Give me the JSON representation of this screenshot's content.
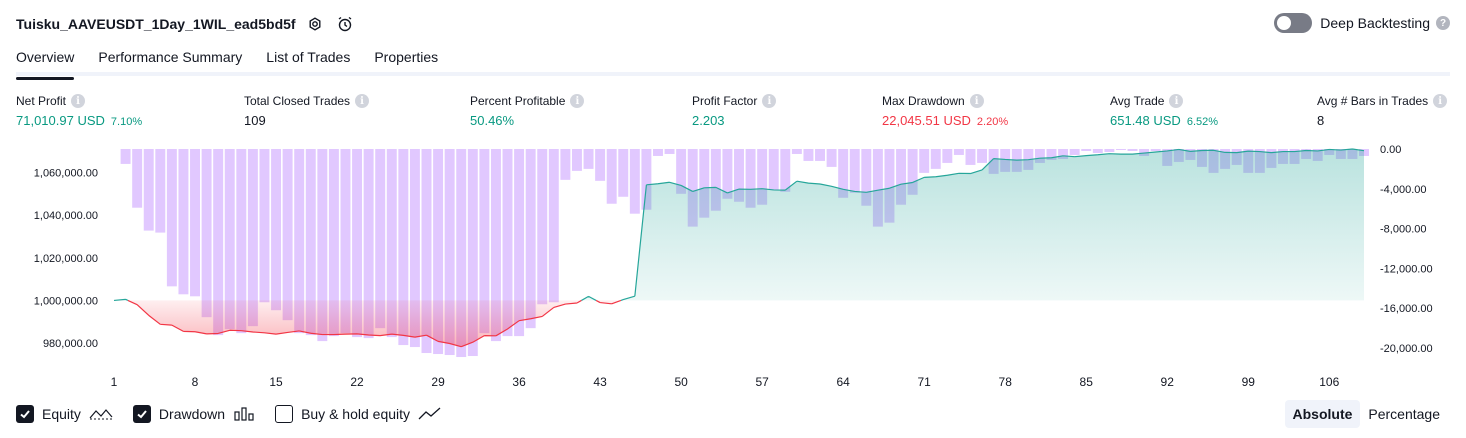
{
  "header": {
    "title": "Tuisku_AAVEUSDT_1Day_1WIL_ead5bd5f",
    "deep_label": "Deep Backtesting",
    "deep_enabled": false
  },
  "tabs": [
    {
      "label": "Overview",
      "active": true
    },
    {
      "label": "Performance Summary",
      "active": false
    },
    {
      "label": "List of Trades",
      "active": false
    },
    {
      "label": "Properties",
      "active": false
    }
  ],
  "metrics": [
    {
      "label": "Net Profit",
      "value": "71,010.97 USD",
      "pct": "7.10%",
      "tone": "pos"
    },
    {
      "label": "Total Closed Trades",
      "value": "109",
      "pct": "",
      "tone": "neu"
    },
    {
      "label": "Percent Profitable",
      "value": "50.46%",
      "pct": "",
      "tone": "pos"
    },
    {
      "label": "Profit Factor",
      "value": "2.203",
      "pct": "",
      "tone": "pos"
    },
    {
      "label": "Max Drawdown",
      "value": "22,045.51 USD",
      "pct": "2.20%",
      "tone": "neg"
    },
    {
      "label": "Avg Trade",
      "value": "651.48 USD",
      "pct": "6.52%",
      "tone": "pos"
    },
    {
      "label": "Avg # Bars in Trades",
      "value": "8",
      "pct": "",
      "tone": "neu"
    }
  ],
  "legend": {
    "equity_label": "Equity",
    "drawdown_label": "Drawdown",
    "buyhold_label": "Buy & hold equity",
    "equity_checked": true,
    "drawdown_checked": true,
    "buyhold_checked": false
  },
  "scale_toggle": {
    "absolute": "Absolute",
    "percentage": "Percentage",
    "active": "absolute"
  },
  "colors": {
    "equity_line_up": "#26a69a",
    "equity_line_down": "#f23645",
    "drawdown_bar": "#d9b8ff",
    "accent": "#131722"
  },
  "chart_data": {
    "type": "area",
    "x_ticks": [
      "1",
      "8",
      "15",
      "22",
      "29",
      "36",
      "43",
      "50",
      "57",
      "64",
      "71",
      "78",
      "85",
      "92",
      "99",
      "106"
    ],
    "left_axis": {
      "ticks": [
        "1,060,000.00",
        "1,040,000.00",
        "1,020,000.00",
        "1,000,000.00",
        "980,000.00"
      ],
      "range": [
        973000,
        1071000
      ],
      "baseline": 1000000
    },
    "right_axis": {
      "ticks": [
        "0.00",
        "-4,000.00",
        "-8,000.00",
        "-12,000.00",
        "-16,000.00",
        "-20,000.00"
      ],
      "range": [
        -21000,
        0
      ]
    },
    "equity": [
      1000000,
      1000500,
      998000,
      993000,
      988800,
      988400,
      985500,
      985300,
      984300,
      984500,
      986000,
      985800,
      985200,
      984800,
      984200,
      985000,
      985700,
      984600,
      984000,
      984000,
      984200,
      984300,
      983800,
      983500,
      984200,
      983600,
      982800,
      983700,
      980800,
      979800,
      978300,
      980400,
      983500,
      983400,
      986600,
      990500,
      991400,
      992500,
      996700,
      998300,
      998800,
      1001900,
      999000,
      998400,
      1000400,
      1002000,
      1054200,
      1054700,
      1055400,
      1053900,
      1051100,
      1052800,
      1053000,
      1050400,
      1052200,
      1052100,
      1052400,
      1051800,
      1051700,
      1055900,
      1055000,
      1054600,
      1053500,
      1052100,
      1051100,
      1050700,
      1051700,
      1052600,
      1054500,
      1055300,
      1057700,
      1058000,
      1058700,
      1059600,
      1059500,
      1061200,
      1066500,
      1066100,
      1065800,
      1066000,
      1066700,
      1066900,
      1067800,
      1067400,
      1067900,
      1068300,
      1068800,
      1068600,
      1068600,
      1069100,
      1069600,
      1070100,
      1070800,
      1069900,
      1070300,
      1070400,
      1069400,
      1069300,
      1070000,
      1069800,
      1069300,
      1069800,
      1069800,
      1070300,
      1070100,
      1070800,
      1070500,
      1071000,
      1070200
    ],
    "drawdown": [
      0,
      -1500,
      -5900,
      -8200,
      -8400,
      -13800,
      -14600,
      -14800,
      -16900,
      -18700,
      -18100,
      -18500,
      -17800,
      -15400,
      -16200,
      -17200,
      -18500,
      -18700,
      -19300,
      -18800,
      -18500,
      -18900,
      -19000,
      -18000,
      -18900,
      -19700,
      -19900,
      -20500,
      -20600,
      -20700,
      -20900,
      -20800,
      -18500,
      -19300,
      -18800,
      -18800,
      -18000,
      -15600,
      -15400,
      -3100,
      -2200,
      -2000,
      -3200,
      -5500,
      -4800,
      -6500,
      -6100,
      -700,
      -500,
      -4500,
      -7800,
      -6900,
      -6200,
      -5000,
      -5300,
      -5900,
      -5600,
      -4100,
      -4300,
      -500,
      -1200,
      -1200,
      -1800,
      -4900,
      -4400,
      -5700,
      -7800,
      -7400,
      -5600,
      -4600,
      -2400,
      -2000,
      -1400,
      -600,
      -1600,
      -1400,
      -2500,
      -2300,
      -2300,
      -2100,
      -1400,
      -1100,
      -1000,
      -600,
      -200,
      -400,
      -300,
      -100,
      -200,
      -700,
      -200,
      -1700,
      -1300,
      -1100,
      -1800,
      -2400,
      -2000,
      -1600,
      -2400,
      -2400,
      -1900,
      -1500,
      -1500,
      -1000,
      -1200,
      -600,
      -1000,
      -1000,
      -700
    ]
  }
}
